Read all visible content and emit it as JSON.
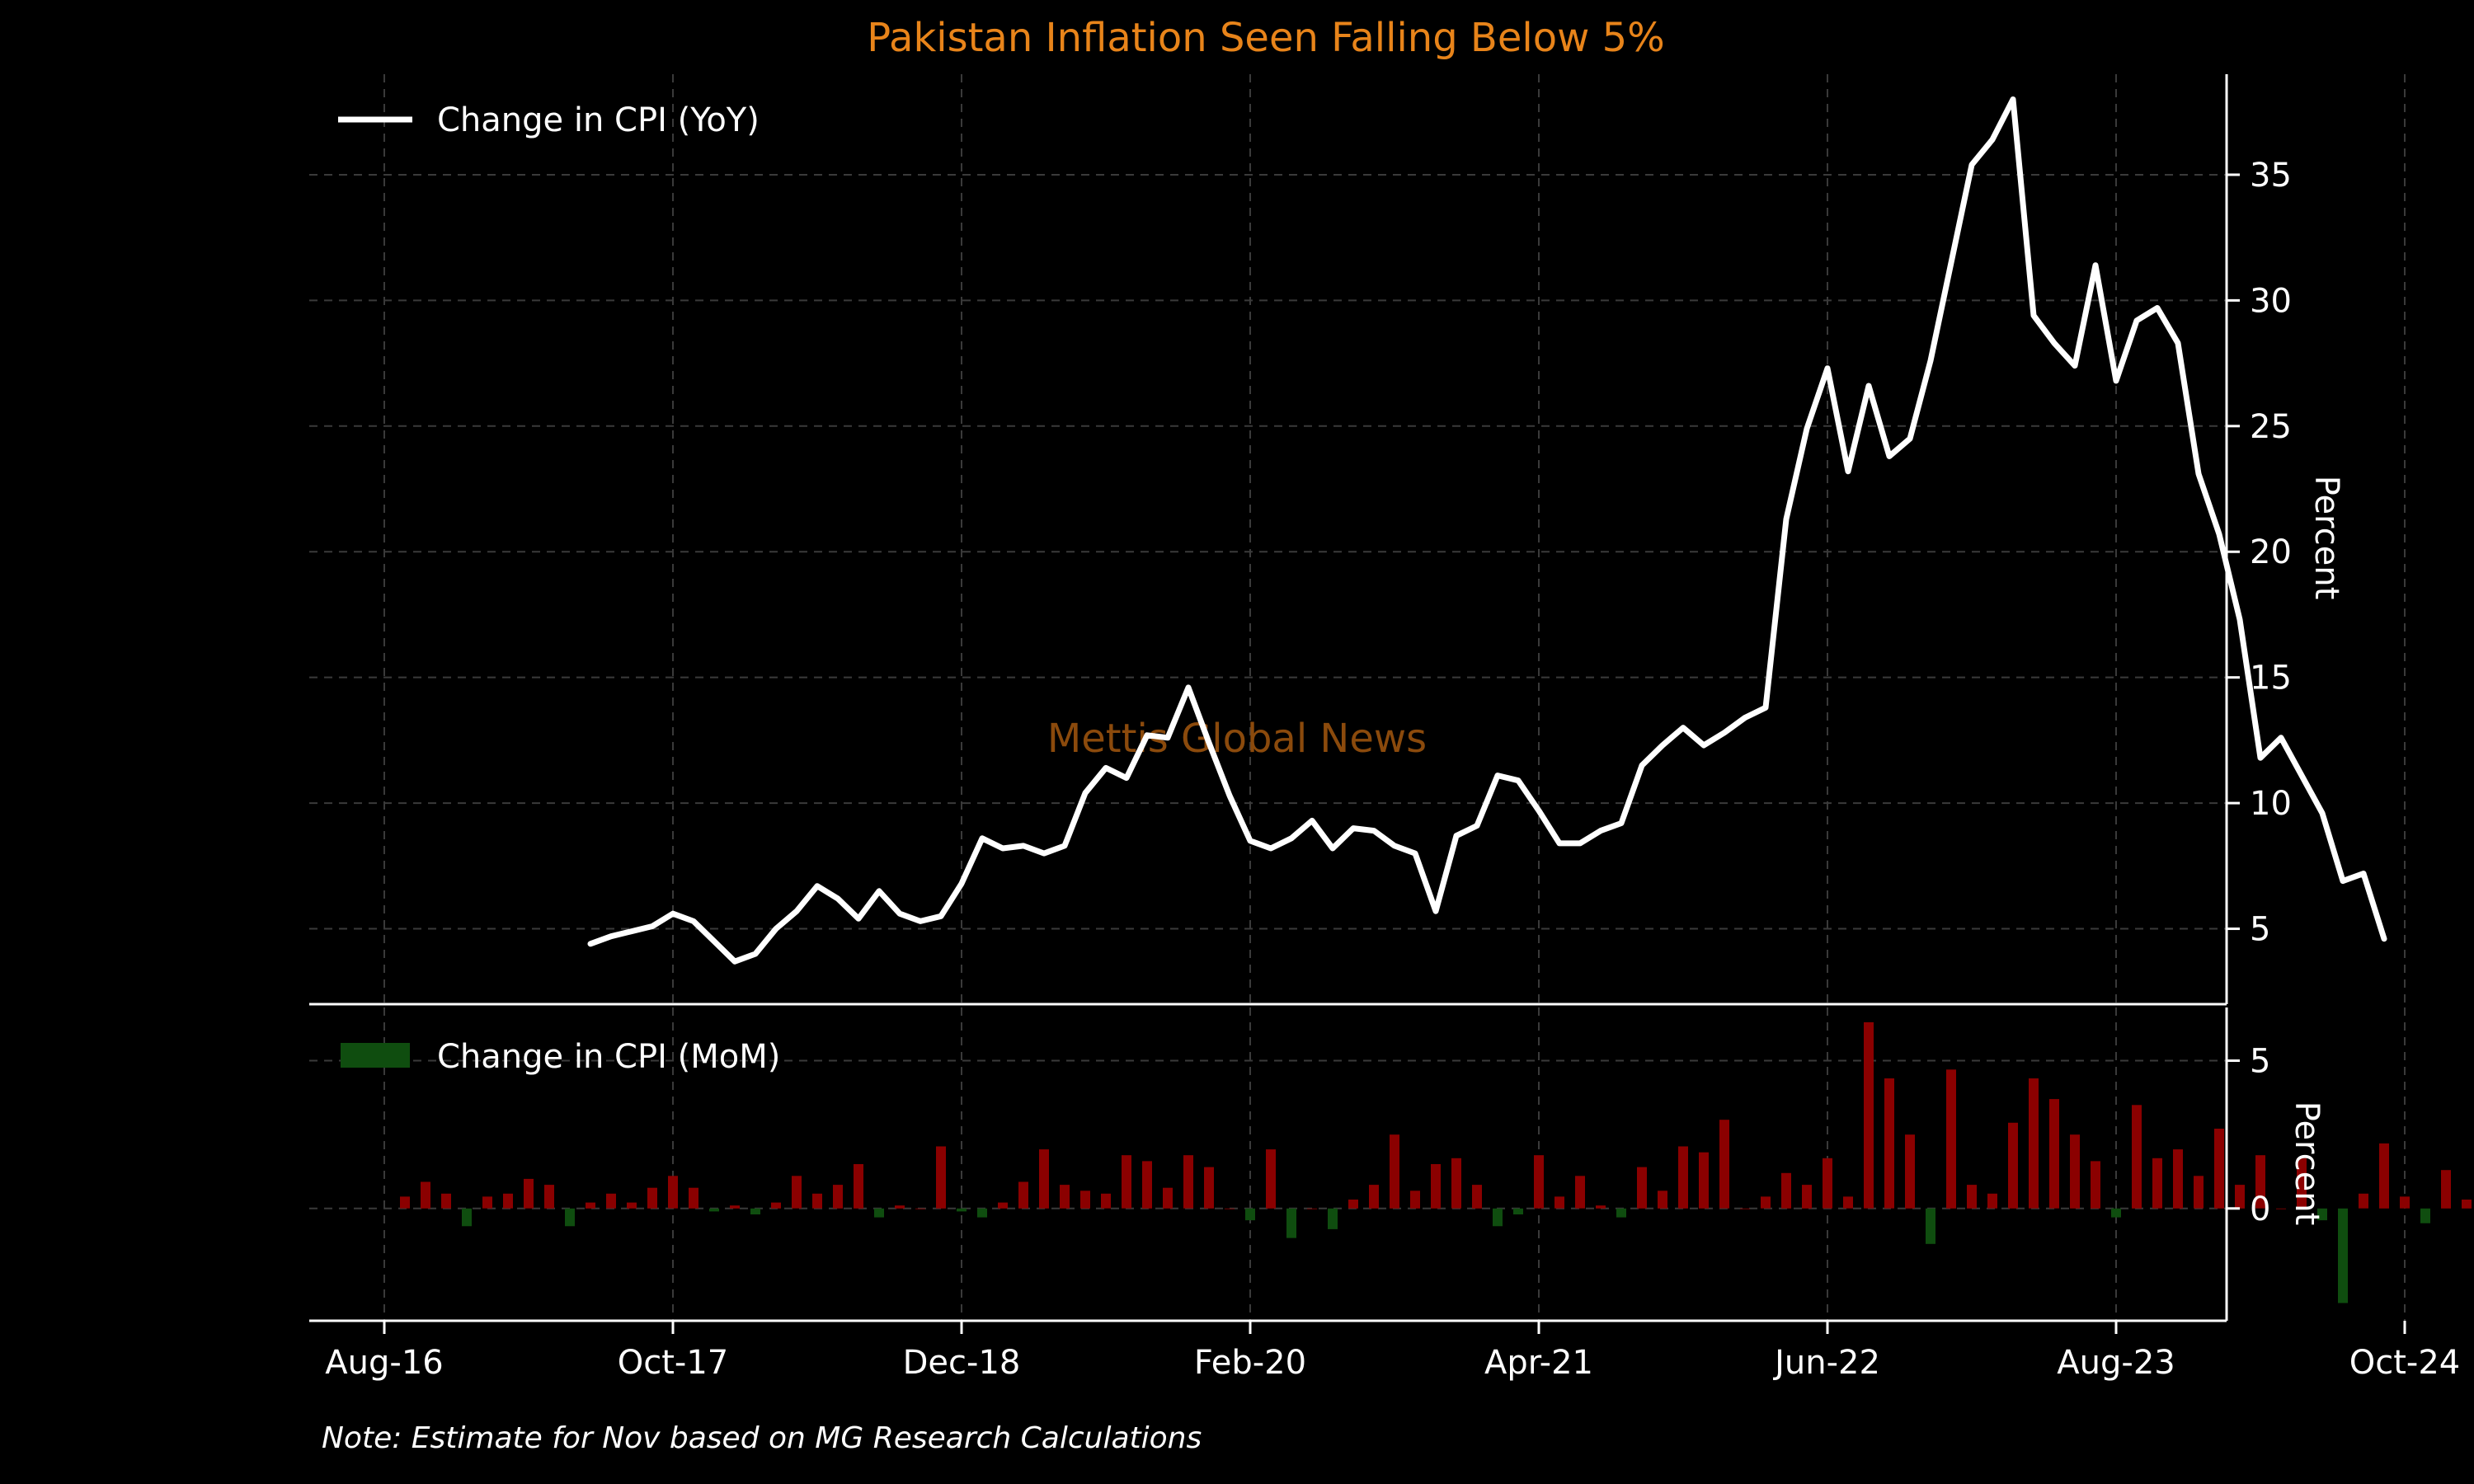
{
  "chart_data": [
    {
      "type": "line",
      "title": "Pakistan Inflation Seen Falling Below 5%",
      "ylabel": "Percent",
      "ylim": [
        2,
        39
      ],
      "yticks": [
        5,
        10,
        15,
        20,
        25,
        30,
        35
      ],
      "grid": true,
      "legend_position": "top-left",
      "watermark": "Mettis Global News",
      "series": [
        {
          "name": "Change in CPI (YoY)",
          "color": "#ffffff",
          "x_start": "2017-06",
          "values": [
            4.4,
            4.7,
            4.9,
            5.1,
            5.6,
            5.3,
            4.5,
            3.7,
            4.0,
            5.0,
            5.7,
            6.7,
            6.2,
            5.4,
            6.5,
            5.6,
            5.3,
            5.5,
            6.8,
            8.6,
            8.2,
            8.3,
            8.0,
            8.3,
            10.4,
            11.4,
            11.0,
            12.7,
            12.6,
            14.6,
            12.4,
            10.3,
            8.5,
            8.2,
            8.6,
            9.3,
            8.2,
            9.0,
            8.9,
            8.3,
            8.0,
            5.7,
            8.7,
            9.1,
            11.1,
            10.9,
            9.7,
            8.4,
            8.4,
            8.9,
            9.2,
            11.5,
            12.3,
            13.0,
            12.3,
            12.8,
            13.4,
            13.8,
            21.3,
            24.9,
            27.3,
            23.2,
            26.6,
            23.8,
            24.5,
            27.6,
            31.5,
            35.4,
            36.4,
            38.0,
            29.4,
            28.3,
            27.4,
            31.4,
            26.8,
            29.2,
            29.7,
            28.3,
            23.1,
            20.7,
            17.3,
            11.8,
            12.6,
            11.1,
            9.6,
            6.9,
            7.2,
            4.6
          ]
        }
      ]
    },
    {
      "type": "bar",
      "ylabel": "Percent",
      "ylim": [
        -3.8,
        6.8
      ],
      "yticks": [
        0,
        5
      ],
      "legend_position": "top-left",
      "x_tick_labels": [
        "Aug-16",
        "Oct-17",
        "Dec-18",
        "Feb-20",
        "Apr-21",
        "Jun-22",
        "Aug-23",
        "Oct-24"
      ],
      "x_tick_dates": [
        "2016-08",
        "2017-10",
        "2018-12",
        "2020-02",
        "2021-04",
        "2022-06",
        "2023-08",
        "2024-10"
      ],
      "series": [
        {
          "name": "Change in CPI (MoM)",
          "color_positive": "#8b0000",
          "color_negative": "#0f4d0f",
          "x_start": "2016-09",
          "values": [
            0.4,
            0.9,
            0.5,
            -0.6,
            0.4,
            0.5,
            1.0,
            0.8,
            -0.6,
            0.2,
            0.5,
            0.2,
            0.7,
            1.1,
            0.7,
            -0.1,
            0.1,
            -0.2,
            0.2,
            1.1,
            0.5,
            0.8,
            1.5,
            -0.3,
            0.1,
            0.0,
            2.1,
            -0.1,
            -0.3,
            0.2,
            0.9,
            2.0,
            0.8,
            0.6,
            0.5,
            1.8,
            1.6,
            0.7,
            1.8,
            1.4,
            0.0,
            -0.4,
            2.0,
            -1.0,
            0.0,
            -0.7,
            0.3,
            0.8,
            2.5,
            0.6,
            1.5,
            1.7,
            0.8,
            -0.6,
            -0.2,
            1.8,
            0.4,
            1.1,
            0.1,
            -0.3,
            1.4,
            0.6,
            2.1,
            1.9,
            3.0,
            0.0,
            0.4,
            1.2,
            0.8,
            1.7,
            0.4,
            6.3,
            4.4,
            2.5,
            -1.2,
            4.7,
            0.8,
            0.5,
            2.9,
            4.4,
            3.7,
            2.5,
            1.6,
            -0.3,
            3.5,
            1.7,
            2.0,
            1.1,
            2.7,
            0.8,
            1.8,
            0.0,
            1.7,
            -0.4,
            -3.2,
            0.5,
            2.2,
            0.4,
            -0.5,
            1.3,
            0.3
          ]
        }
      ]
    }
  ],
  "note": "Note: Estimate for Nov based on MG Research Calculations"
}
